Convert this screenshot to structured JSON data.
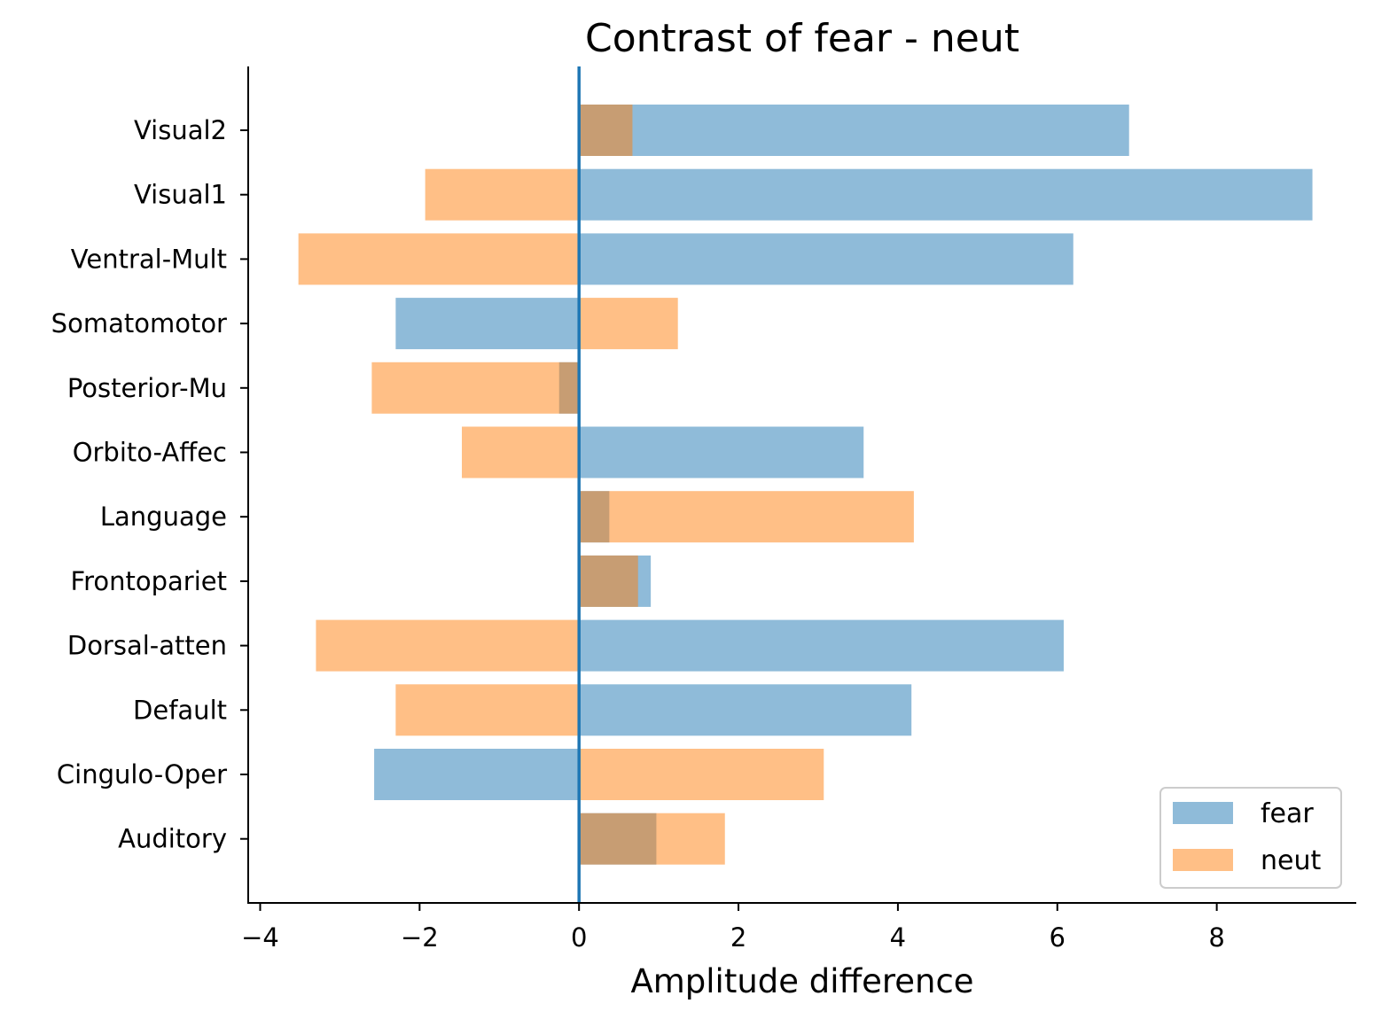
{
  "chart_data": {
    "type": "bar",
    "orientation": "horizontal",
    "title": "Contrast of fear - neut",
    "xlabel": "Amplitude difference",
    "ylabel": "",
    "xlim": [
      -4.15,
      9.75
    ],
    "xticks": [
      -4,
      -2,
      0,
      2,
      4,
      6,
      8
    ],
    "xtick_labels": [
      "−4",
      "−2",
      "0",
      "2",
      "4",
      "6",
      "8"
    ],
    "categories": [
      "Visual2",
      "Visual1",
      "Ventral-Mult",
      "Somatomotor",
      "Posterior-Mu",
      "Orbito-Affec",
      "Language",
      "Frontopariet",
      "Dorsal-atten",
      "Default",
      "Cingulo-Oper",
      "Auditory"
    ],
    "series": [
      {
        "name": "fear",
        "color": "#1f77b4",
        "opacity": 0.5,
        "values": [
          6.9,
          9.2,
          6.2,
          -2.3,
          -0.25,
          3.57,
          0.38,
          0.9,
          6.08,
          4.17,
          -2.57,
          0.97
        ]
      },
      {
        "name": "neut",
        "color": "#ff7f0e",
        "opacity": 0.5,
        "values": [
          0.67,
          -1.93,
          -3.52,
          1.24,
          -2.6,
          -1.47,
          4.2,
          0.74,
          -3.3,
          -2.3,
          3.07,
          1.83
        ]
      }
    ],
    "zero_line": {
      "value": 0,
      "color": "#1f77b4"
    },
    "legend": {
      "position": "lower-right",
      "entries": [
        "fear",
        "neut"
      ]
    },
    "grid": false
  }
}
